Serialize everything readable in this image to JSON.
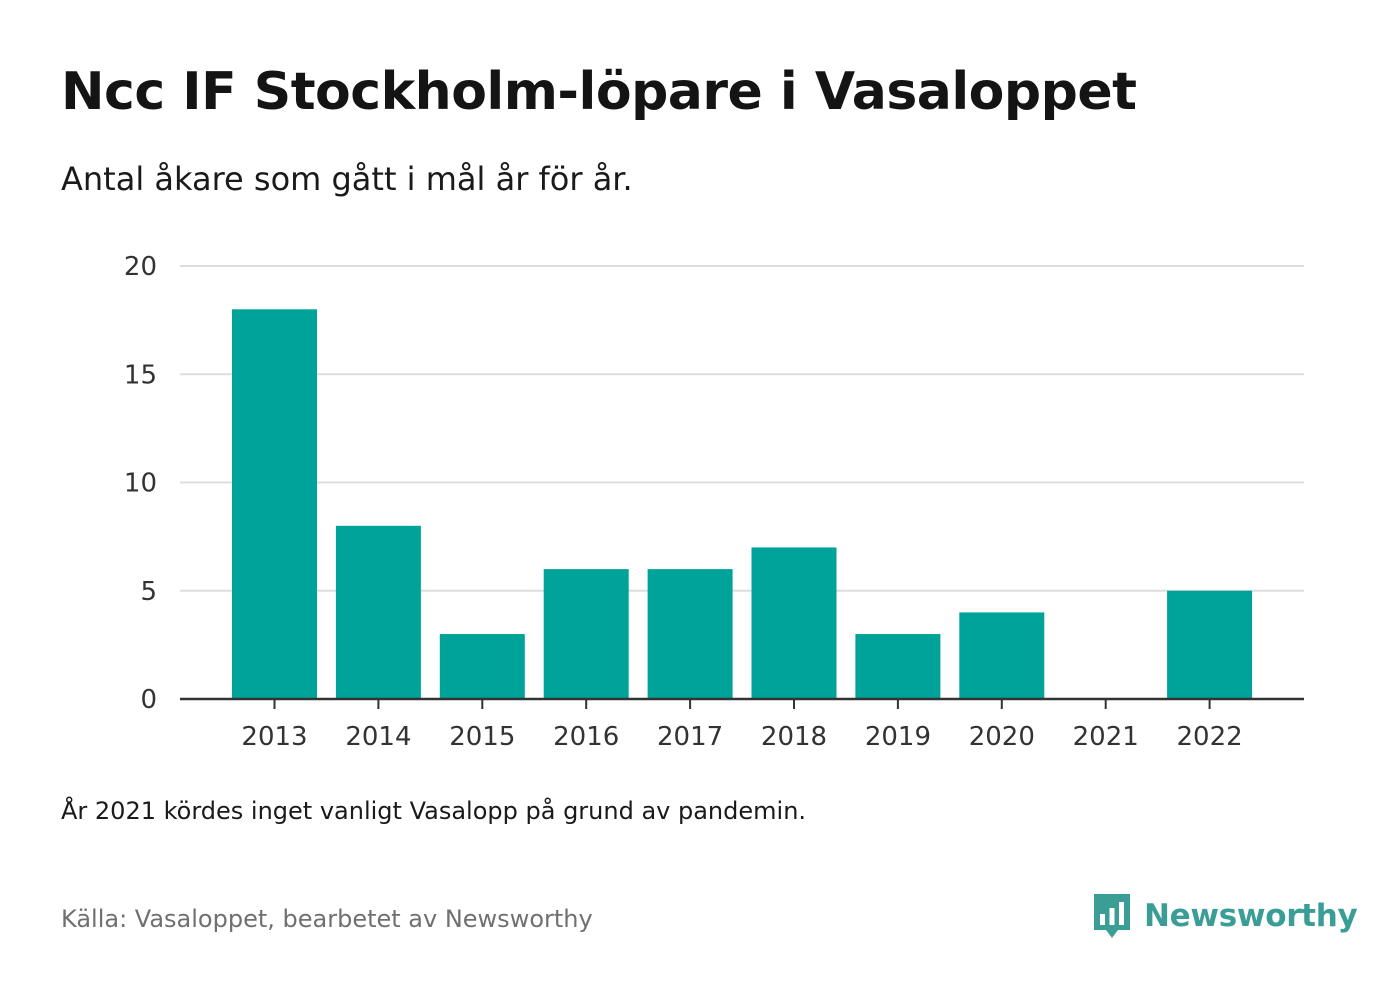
{
  "header": {
    "title": "Ncc IF Stockholm-löpare i Vasaloppet",
    "subtitle": "Antal åkare som gått i mål år för år."
  },
  "footer": {
    "note": "År 2021 kördes inget vanligt Vasalopp på grund av pandemin.",
    "source": "Källa: Vasaloppet, bearbetet av Newsworthy",
    "brand": "Newsworthy",
    "brand_icon": "newsworthy-bar-chart-logo-icon",
    "brand_color": "#3a9e96"
  },
  "chart_data": {
    "type": "bar",
    "title": "Ncc IF Stockholm-löpare i Vasaloppet",
    "subtitle": "Antal åkare som gått i mål år för år.",
    "categories": [
      "2013",
      "2014",
      "2015",
      "2016",
      "2017",
      "2018",
      "2019",
      "2020",
      "2021",
      "2022"
    ],
    "values": [
      18,
      8,
      3,
      6,
      6,
      7,
      3,
      4,
      0,
      5
    ],
    "ylim": [
      0,
      20
    ],
    "yticks": [
      0,
      5,
      10,
      15,
      20
    ],
    "xlabel": "",
    "ylabel": "",
    "grid": true,
    "bar_color": "#00a39a"
  }
}
